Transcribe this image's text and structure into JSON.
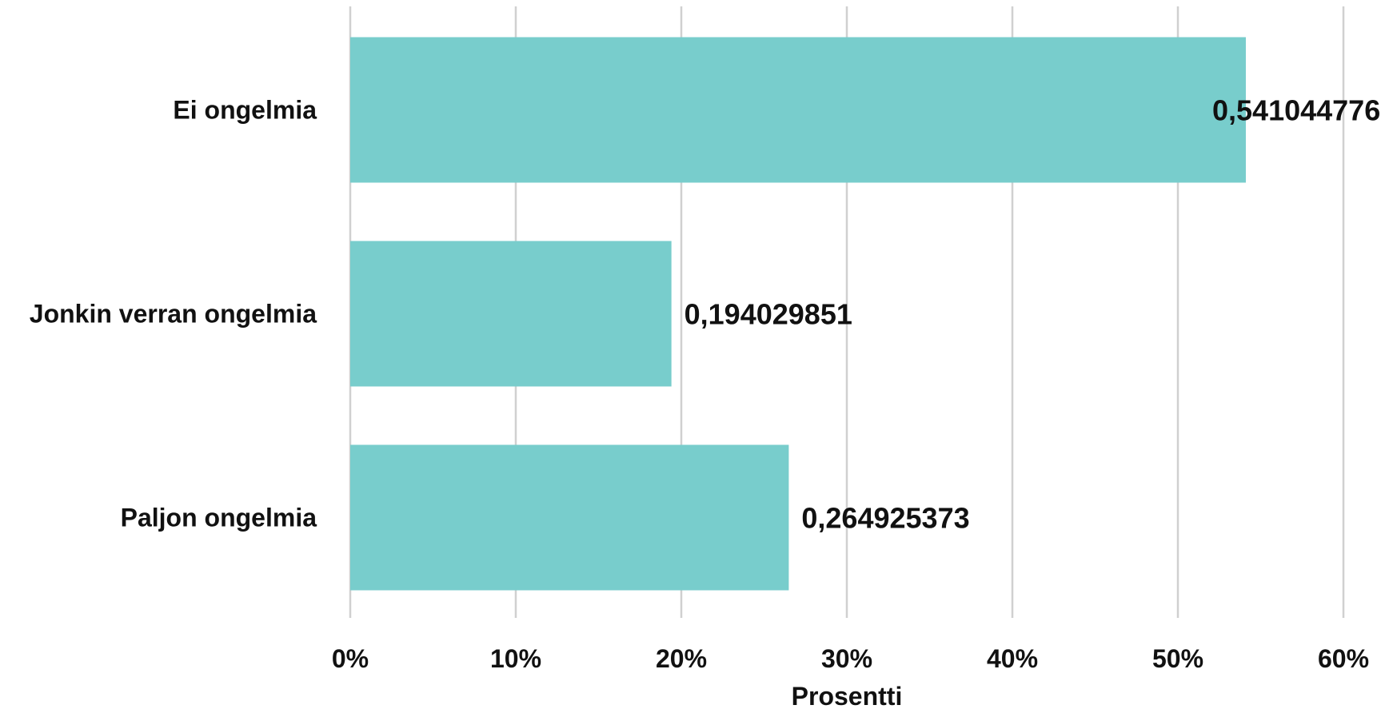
{
  "chart_data": {
    "type": "bar",
    "orientation": "horizontal",
    "categories": [
      "Ei ongelmia",
      "Jonkin verran ongelmia",
      "Paljon ongelmia"
    ],
    "values": [
      0.541044776,
      0.194029851,
      0.264925373
    ],
    "value_labels": [
      "0,541044776",
      "0,194029851",
      "0,264925373"
    ],
    "xlabel": "Prosentti",
    "ylabel": "",
    "title": "",
    "xlim": [
      0,
      0.6
    ],
    "x_ticks": [
      0,
      0.1,
      0.2,
      0.3,
      0.4,
      0.5,
      0.6
    ],
    "x_tick_labels": [
      "0%",
      "10%",
      "20%",
      "30%",
      "40%",
      "50%",
      "60%"
    ],
    "grid": "vertical",
    "legend": "none",
    "colors": {
      "bar": "#78cdcc",
      "grid": "#d0d0d0",
      "text": "#111111"
    }
  }
}
